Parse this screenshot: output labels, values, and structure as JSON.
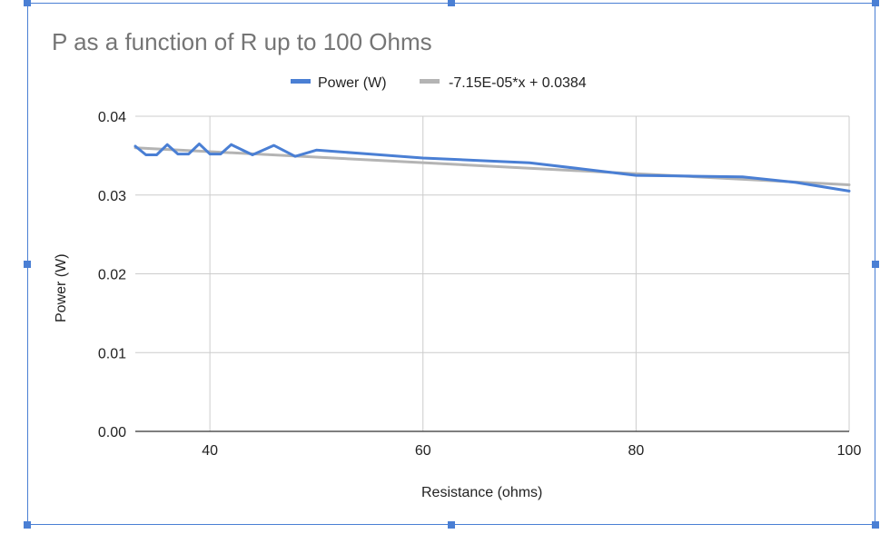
{
  "chart_data": {
    "type": "line",
    "title": "P as a function of R up to 100 Ohms",
    "xlabel": "Resistance (ohms)",
    "ylabel": "Power (W)",
    "xlim": [
      33,
      100
    ],
    "ylim": [
      0,
      0.04
    ],
    "x_ticks": [
      40,
      60,
      80,
      100
    ],
    "y_ticks": [
      0.0,
      0.01,
      0.02,
      0.03,
      0.04
    ],
    "y_tick_labels": [
      "0.00",
      "0.01",
      "0.02",
      "0.03",
      "0.04"
    ],
    "grid": true,
    "legend_position": "top",
    "series": [
      {
        "name": "Power (W)",
        "color": "#4a7fd4",
        "x": [
          33,
          34,
          35,
          36,
          37,
          38,
          39,
          40,
          41,
          42,
          44,
          46,
          48,
          50,
          55,
          60,
          65,
          70,
          75,
          80,
          85,
          90,
          95,
          100
        ],
        "y": [
          0.0362,
          0.0351,
          0.0351,
          0.0364,
          0.0352,
          0.0352,
          0.0365,
          0.0352,
          0.0352,
          0.0364,
          0.0351,
          0.0363,
          0.0349,
          0.0357,
          0.0352,
          0.0347,
          0.0344,
          0.0341,
          0.0333,
          0.0325,
          0.0324,
          0.0323,
          0.0316,
          0.0305
        ]
      },
      {
        "name": "-7.15E-05*x + 0.0384",
        "color": "#b4b4b4",
        "type": "trendline",
        "slope": -7.15e-05,
        "intercept": 0.0384,
        "x": [
          33,
          100
        ],
        "y": [
          0.036,
          0.0313
        ]
      }
    ]
  }
}
